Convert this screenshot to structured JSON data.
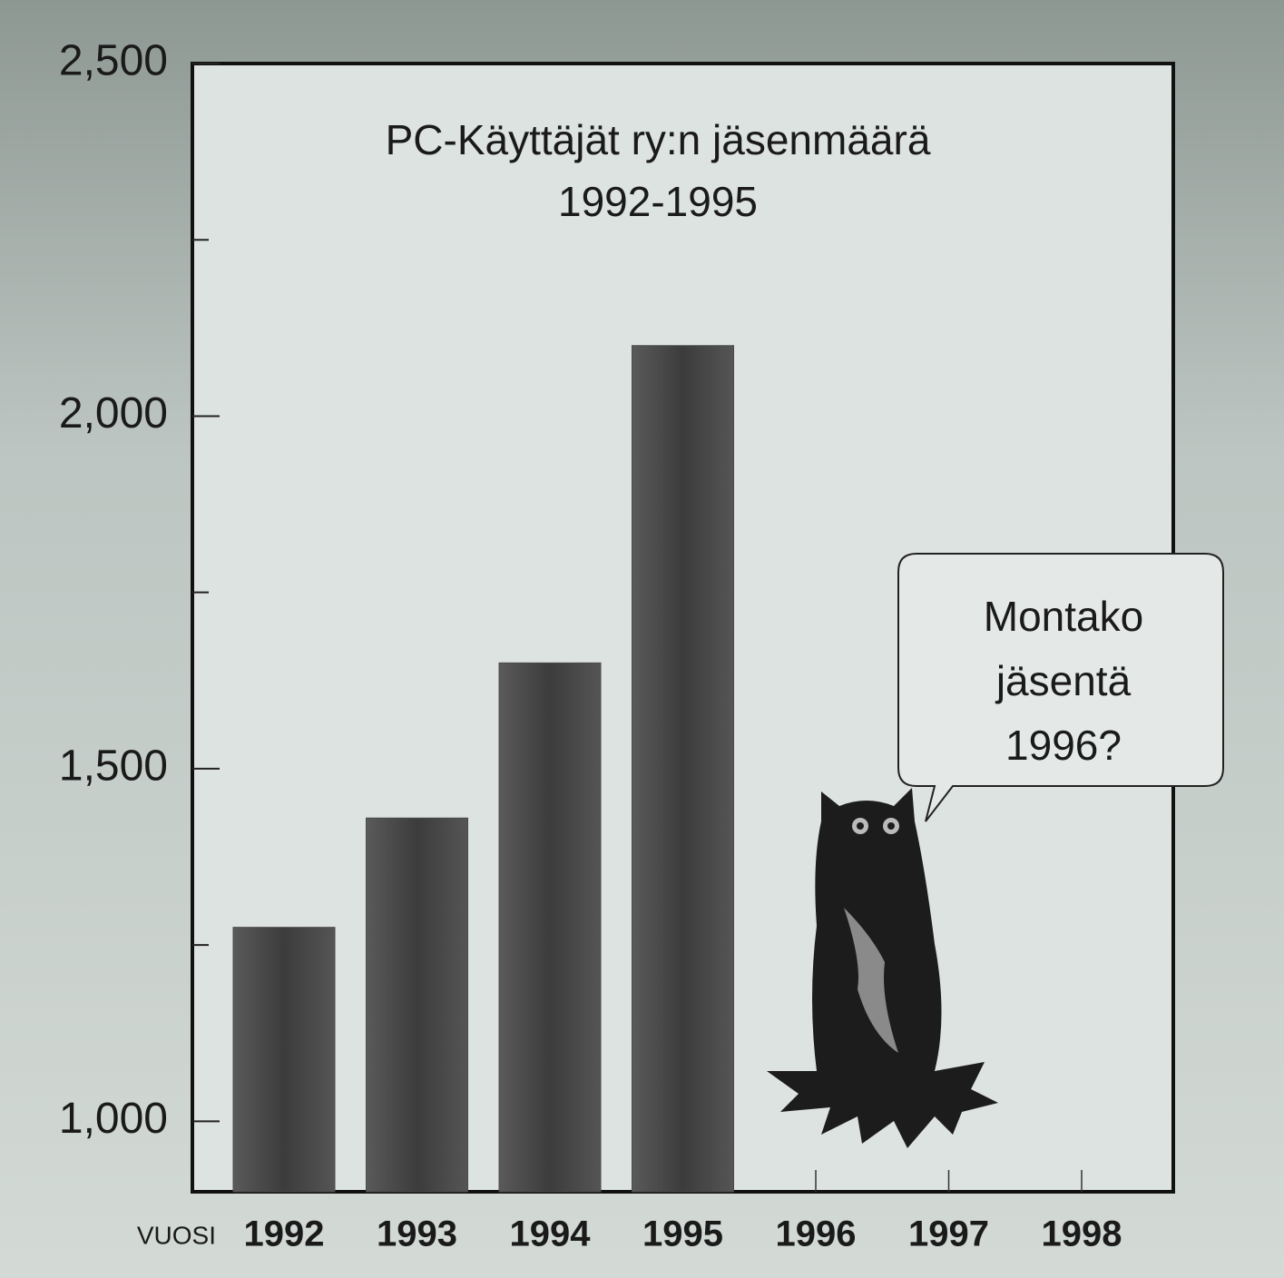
{
  "chart_data": {
    "type": "bar",
    "title": [
      "PC-Käyttäjät ry:n jäsenmäärä",
      "1992-1995"
    ],
    "x_label": "VUOSI",
    "categories": [
      "1992",
      "1993",
      "1994",
      "1995",
      "1996",
      "1997",
      "1998"
    ],
    "values": [
      1275,
      1430,
      1650,
      2100,
      null,
      null,
      null
    ],
    "color": "#4a4a4a",
    "ylim": [
      900,
      2500
    ],
    "yticks": [
      {
        "value": 1000,
        "label": "1,000"
      },
      {
        "value": 1500,
        "label": "1,500"
      },
      {
        "value": 2000,
        "label": "2,000"
      },
      {
        "value": 2500,
        "label": "2,500"
      }
    ],
    "yminorticks": [
      1250,
      1750,
      2250
    ],
    "annotation": [
      "Montako",
      "jäsentä",
      "1996?"
    ]
  }
}
